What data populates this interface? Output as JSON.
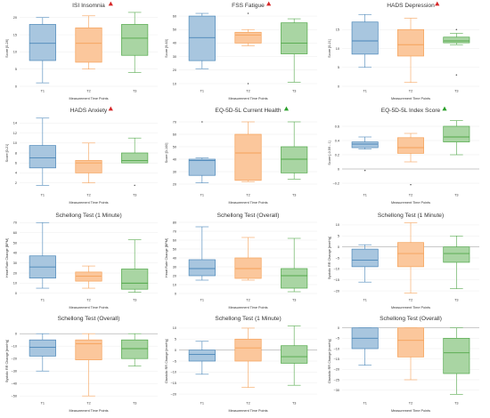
{
  "colors": {
    "T1": {
      "fill": "#a8c6df",
      "stroke": "#4a86b8"
    },
    "T2": {
      "fill": "#fbc79c",
      "stroke": "#f5a25a"
    },
    "T3": {
      "fill": "#a9d5a3",
      "stroke": "#52a84a"
    },
    "up_marker": "#d62728",
    "ok_marker": "#2ca02c"
  },
  "chart_data": [
    {
      "type": "box",
      "title": "ISI Insomnia",
      "marker": "up",
      "ylabel": "Score [0-28]",
      "xlabel": "Measurement Time Points",
      "categories": [
        "T1",
        "T2",
        "T3"
      ],
      "ylim": [
        0,
        22
      ],
      "yticks": [
        0,
        5,
        10,
        15,
        20
      ],
      "boxes": [
        {
          "whislo": 1,
          "q1": 7.5,
          "med": 12.5,
          "q3": 18,
          "whishi": 20,
          "fliers": []
        },
        {
          "whislo": 5,
          "q1": 7,
          "med": 12.5,
          "q3": 17,
          "whishi": 20.5,
          "fliers": []
        },
        {
          "whislo": 4,
          "q1": 9,
          "med": 14,
          "q3": 18,
          "whishi": 21.5,
          "fliers": []
        }
      ]
    },
    {
      "type": "box",
      "title": "FSS Fatigue",
      "marker": "up",
      "ylabel": "Score [9-63]",
      "xlabel": "Measurement Time Points",
      "categories": [
        "T1",
        "T2",
        "T3"
      ],
      "ylim": [
        8,
        64
      ],
      "yticks": [
        10,
        20,
        30,
        40,
        50,
        60
      ],
      "boxes": [
        {
          "whislo": 21,
          "q1": 27,
          "med": 44,
          "q3": 60,
          "whishi": 62,
          "fliers": []
        },
        {
          "whislo": 38,
          "q1": 40,
          "med": 46,
          "q3": 48,
          "whishi": 50,
          "fliers": [
            10,
            62
          ]
        },
        {
          "whislo": 11,
          "q1": 32,
          "med": 40,
          "q3": 55,
          "whishi": 58,
          "fliers": []
        }
      ]
    },
    {
      "type": "box",
      "title": "HADS Depression",
      "marker": "up",
      "ylabel": "Score [0-21]",
      "xlabel": "Measurement Time Points",
      "categories": [
        "T1",
        "T2",
        "T3"
      ],
      "ylim": [
        0,
        20
      ],
      "yticks": [
        0,
        5,
        10,
        15
      ],
      "boxes": [
        {
          "whislo": 5,
          "q1": 8.5,
          "med": 12,
          "q3": 17,
          "whishi": 19,
          "fliers": []
        },
        {
          "whislo": 1,
          "q1": 8,
          "med": 11,
          "q3": 15,
          "whishi": 18,
          "fliers": []
        },
        {
          "whislo": 11,
          "q1": 11.5,
          "med": 12,
          "q3": 13,
          "whishi": 14,
          "fliers": [
            3,
            15
          ]
        }
      ]
    },
    {
      "type": "box",
      "title": "HADS Anxiety",
      "marker": "up",
      "ylabel": "Score [0-21]",
      "xlabel": "Measurement Time Points",
      "categories": [
        "T1",
        "T2",
        "T3"
      ],
      "ylim": [
        0.5,
        15.5
      ],
      "yticks": [
        2,
        4,
        6,
        8,
        10,
        12,
        14
      ],
      "boxes": [
        {
          "whislo": 1.5,
          "q1": 5,
          "med": 7,
          "q3": 9.5,
          "whishi": 15,
          "fliers": []
        },
        {
          "whislo": 2,
          "q1": 4,
          "med": 6,
          "q3": 6.5,
          "whishi": 10,
          "fliers": []
        },
        {
          "whislo": 6,
          "q1": 6,
          "med": 6.5,
          "q3": 8,
          "whishi": 11,
          "fliers": [
            1.5
          ]
        }
      ]
    },
    {
      "type": "box",
      "title": "EQ-5D-5L Current Health",
      "marker": "ok",
      "ylabel": "Score [0-100]",
      "xlabel": "Measurement Time Points",
      "categories": [
        "T1",
        "T2",
        "T3"
      ],
      "ylim": [
        15,
        75
      ],
      "yticks": [
        20,
        30,
        40,
        50,
        60,
        70
      ],
      "boxes": [
        {
          "whislo": 21,
          "q1": 27,
          "med": 39,
          "q3": 40,
          "whishi": 41,
          "fliers": [
            70
          ]
        },
        {
          "whislo": 22,
          "q1": 23,
          "med": 45,
          "q3": 60,
          "whishi": 70,
          "fliers": []
        },
        {
          "whislo": 24,
          "q1": 29,
          "med": 40,
          "q3": 50,
          "whishi": 70,
          "fliers": []
        }
      ]
    },
    {
      "type": "box",
      "title": "EQ-5D-5L Index Score",
      "marker": "ok",
      "ylabel": "Score [-0.59 - 1]",
      "xlabel": "Measurement Time Points",
      "categories": [
        "T1",
        "T2",
        "T3"
      ],
      "ylim": [
        -0.3,
        0.75
      ],
      "yticks": [
        -0.2,
        0,
        0.2,
        0.4,
        0.6
      ],
      "zero_line": true,
      "boxes": [
        {
          "whislo": 0.28,
          "q1": 0.3,
          "med": 0.35,
          "q3": 0.38,
          "whishi": 0.45,
          "fliers": [
            -0.02
          ]
        },
        {
          "whislo": 0.1,
          "q1": 0.22,
          "med": 0.3,
          "q3": 0.44,
          "whishi": 0.5,
          "fliers": [
            -0.22
          ]
        },
        {
          "whislo": 0.2,
          "q1": 0.38,
          "med": 0.45,
          "q3": 0.6,
          "whishi": 0.68,
          "fliers": []
        }
      ]
    },
    {
      "type": "box",
      "title": "Schellong Test (1 Minute)",
      "marker": "none",
      "ylabel": "Heart Rate Change [BPM]",
      "xlabel": "Measurement Time Points",
      "categories": [
        "T1",
        "T2",
        "T3"
      ],
      "ylim": [
        -2,
        72
      ],
      "yticks": [
        0,
        10,
        20,
        30,
        40,
        50,
        60,
        70
      ],
      "boxes": [
        {
          "whislo": 5,
          "q1": 15,
          "med": 26,
          "q3": 37,
          "whishi": 70,
          "fliers": []
        },
        {
          "whislo": 5,
          "q1": 12,
          "med": 17,
          "q3": 21,
          "whishi": 27,
          "fliers": []
        },
        {
          "whislo": 1,
          "q1": 4,
          "med": 10,
          "q3": 24,
          "whishi": 53,
          "fliers": []
        }
      ]
    },
    {
      "type": "box",
      "title": "Schellong Test (Overall)",
      "marker": "none",
      "ylabel": "Heart Rate Change [BPM]",
      "xlabel": "Measurement Time Points",
      "categories": [
        "T1",
        "T2",
        "T3"
      ],
      "ylim": [
        -2,
        82
      ],
      "yticks": [
        0,
        10,
        20,
        30,
        40,
        50,
        60,
        70,
        80
      ],
      "boxes": [
        {
          "whislo": 15,
          "q1": 20,
          "med": 28,
          "q3": 38,
          "whishi": 75,
          "fliers": []
        },
        {
          "whislo": 15,
          "q1": 17,
          "med": 28,
          "q3": 40,
          "whishi": 63,
          "fliers": []
        },
        {
          "whislo": 2,
          "q1": 6,
          "med": 20,
          "q3": 28,
          "whishi": 62,
          "fliers": []
        }
      ]
    },
    {
      "type": "box",
      "title": "Schellong Test (1 Minute)",
      "marker": "none",
      "ylabel": "Systolic RR Change [mmHg]",
      "xlabel": "Measurement Time Points",
      "categories": [
        "T1",
        "T2",
        "T3"
      ],
      "ylim": [
        -22,
        12
      ],
      "yticks": [
        -20,
        -15,
        -10,
        -5,
        0,
        5,
        10
      ],
      "zero_line": true,
      "boxes": [
        {
          "whislo": -16,
          "q1": -9,
          "med": -6,
          "q3": -1,
          "whishi": 1,
          "fliers": []
        },
        {
          "whislo": -21,
          "q1": -9,
          "med": -3,
          "q3": 2,
          "whishi": 11,
          "fliers": []
        },
        {
          "whislo": -19,
          "q1": -7,
          "med": -3,
          "q3": 0,
          "whishi": 5,
          "fliers": []
        }
      ]
    },
    {
      "type": "box",
      "title": "Schellong Test (Overall)",
      "marker": "none",
      "ylabel": "Systolic RR Change [mmHg]",
      "xlabel": "Measurement Time Points",
      "categories": [
        "T1",
        "T2",
        "T3"
      ],
      "ylim": [
        -52,
        8
      ],
      "yticks": [
        -50,
        -40,
        -30,
        -20,
        -10,
        0
      ],
      "zero_line": true,
      "boxes": [
        {
          "whislo": -30,
          "q1": -18,
          "med": -11,
          "q3": -5,
          "whishi": 0,
          "fliers": []
        },
        {
          "whislo": -50,
          "q1": -21,
          "med": -8,
          "q3": -5,
          "whishi": 0,
          "fliers": []
        },
        {
          "whislo": -26,
          "q1": -20,
          "med": -12,
          "q3": -5,
          "whishi": 0,
          "fliers": []
        }
      ]
    },
    {
      "type": "box",
      "title": "Schellong Test (1 Minute)",
      "marker": "none",
      "ylabel": "Diastolic RR Change [mmHg]",
      "xlabel": "Measurement Time Points",
      "categories": [
        "T1",
        "T2",
        "T3"
      ],
      "ylim": [
        -22,
        12
      ],
      "yticks": [
        -20,
        -15,
        -10,
        -5,
        0,
        5,
        10
      ],
      "zero_line": true,
      "boxes": [
        {
          "whislo": -11,
          "q1": -5,
          "med": -2,
          "q3": 0,
          "whishi": 4,
          "fliers": []
        },
        {
          "whislo": -17,
          "q1": -5,
          "med": 1,
          "q3": 5,
          "whishi": 10,
          "fliers": []
        },
        {
          "whislo": -16,
          "q1": -6,
          "med": -3,
          "q3": 2,
          "whishi": 11,
          "fliers": []
        }
      ]
    },
    {
      "type": "box",
      "title": "Schellong Test (Overall)",
      "marker": "none",
      "ylabel": "Diastolic RR Change [mmHg]",
      "xlabel": "Measurement Time Points",
      "categories": [
        "T1",
        "T2",
        "T3"
      ],
      "ylim": [
        -34,
        2
      ],
      "yticks": [
        -30,
        -25,
        -20,
        -15,
        -10,
        -5,
        0
      ],
      "zero_line": true,
      "boxes": [
        {
          "whislo": -18,
          "q1": -10,
          "med": -5,
          "q3": 0,
          "whishi": 0,
          "fliers": []
        },
        {
          "whislo": -25,
          "q1": -14,
          "med": -6,
          "q3": 0,
          "whishi": 0,
          "fliers": []
        },
        {
          "whislo": -32,
          "q1": -22,
          "med": -12,
          "q3": -5,
          "whishi": 0,
          "fliers": []
        }
      ]
    }
  ]
}
